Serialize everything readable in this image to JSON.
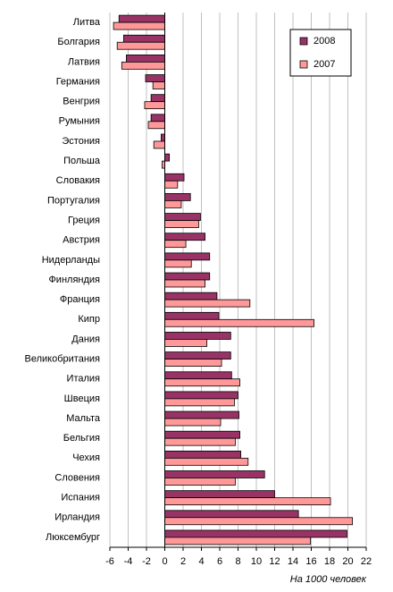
{
  "chart_data": {
    "type": "bar",
    "orientation": "horizontal",
    "x_label": "На 1000 человек",
    "categories": [
      "Литва",
      "Болгария",
      "Латвия",
      "Германия",
      "Венгрия",
      "Румыния",
      "Эстония",
      "Польша",
      "Словакия",
      "Португалия",
      "Греция",
      "Австрия",
      "Нидерланды",
      "Финляндия",
      "Франция",
      "Кипр",
      "Дания",
      "Великобритания",
      "Италия",
      "Швеция",
      "Мальта",
      "Бельгия",
      "Чехия",
      "Словения",
      "Испания",
      "Ирландия",
      "Люксембург"
    ],
    "series": [
      {
        "name": "2008",
        "color": "#993366",
        "values": [
          -5.0,
          -4.5,
          -4.2,
          -2.1,
          -1.5,
          -1.5,
          -0.4,
          0.5,
          2.1,
          2.8,
          3.9,
          4.4,
          4.9,
          4.9,
          5.7,
          5.9,
          7.2,
          7.2,
          7.3,
          8.0,
          8.1,
          8.2,
          8.3,
          10.9,
          12.0,
          14.6,
          19.9
        ]
      },
      {
        "name": "2007",
        "color": "#FF9999",
        "values": [
          -5.6,
          -5.2,
          -4.7,
          -1.3,
          -2.2,
          -1.8,
          -1.2,
          -0.3,
          1.4,
          1.8,
          3.7,
          2.3,
          2.9,
          4.4,
          9.3,
          16.3,
          4.6,
          6.2,
          8.2,
          7.6,
          6.1,
          7.7,
          9.1,
          7.7,
          18.1,
          20.5,
          15.9
        ]
      }
    ],
    "xlim": [
      -6,
      22
    ],
    "xticks": [
      -6,
      -4,
      -2,
      0,
      2,
      4,
      6,
      8,
      10,
      12,
      14,
      16,
      18,
      20,
      22
    ],
    "grid": true,
    "legend": "top-right"
  }
}
